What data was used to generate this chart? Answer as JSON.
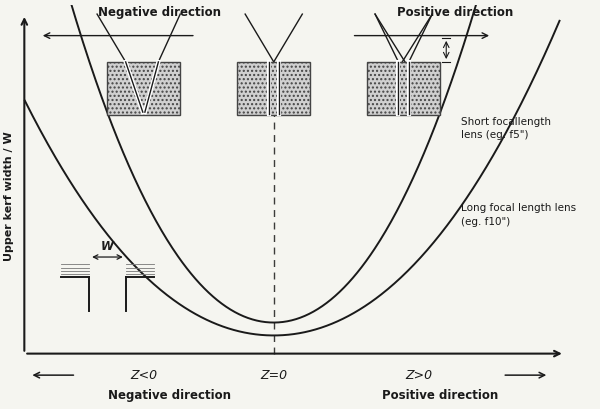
{
  "ylabel": "Upper kerf width / W",
  "z_neg_label": "Z<0",
  "z_zero_label": "Z=0",
  "z_pos_label": "Z>0",
  "label_short": "Short focallength\nlens (eg. f5\")",
  "label_long": "Long focal length lens\n(eg. f10\")",
  "neg_dir_top": "Negative direction",
  "pos_dir_top": "Positive direction",
  "neg_dir_bot": "Negative direction",
  "pos_dir_bot": "Positive direction",
  "kerf_label": "W",
  "bg_color": "#f5f5f0",
  "line_color": "#1a1a1a",
  "axes_color": "#1a1a1a",
  "text_color": "#1a1a1a",
  "rect_color": "#c8c8c8",
  "rect_edge": "#555555"
}
